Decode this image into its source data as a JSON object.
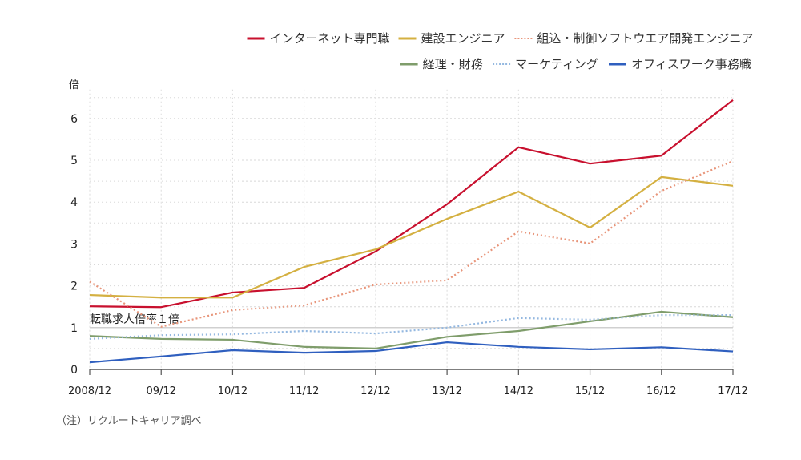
{
  "chart_data": {
    "type": "line",
    "title": "",
    "xlabel": "",
    "ylabel": "倍",
    "ylim": [
      0,
      6.5
    ],
    "yticks": [
      0,
      1,
      2,
      3,
      4,
      5,
      6
    ],
    "grid": true,
    "legend_position": "top-right",
    "categories": [
      "2008/12",
      "09/12",
      "10/12",
      "11/12",
      "12/12",
      "13/12",
      "14/12",
      "15/12",
      "16/12",
      "17/12"
    ],
    "series": [
      {
        "name": "インターネット専門職",
        "color": "#c8102e",
        "style": "solid",
        "values": [
          1.51,
          1.49,
          1.84,
          1.95,
          2.82,
          3.95,
          5.31,
          4.92,
          5.11,
          6.44
        ]
      },
      {
        "name": "建設エンジニア",
        "color": "#d4b041",
        "style": "solid",
        "values": [
          1.78,
          1.72,
          1.72,
          2.45,
          2.87,
          3.6,
          4.25,
          3.39,
          4.6,
          4.39
        ]
      },
      {
        "name": "組込・制御ソフトウエア開発エンジニア",
        "color": "#e8957a",
        "style": "dotted",
        "values": [
          2.1,
          1.02,
          1.42,
          1.53,
          2.03,
          2.13,
          3.3,
          3.01,
          4.27,
          4.98
        ]
      },
      {
        "name": "経理・財務",
        "color": "#7f9d6b",
        "style": "solid",
        "values": [
          0.8,
          0.73,
          0.71,
          0.54,
          0.5,
          0.78,
          0.92,
          1.15,
          1.38,
          1.25
        ]
      },
      {
        "name": "マーケティング",
        "color": "#94b8e0",
        "style": "dotted",
        "values": [
          0.73,
          0.82,
          0.84,
          0.92,
          0.86,
          1.0,
          1.23,
          1.19,
          1.3,
          1.3
        ]
      },
      {
        "name": "オフィスワーク事務職",
        "color": "#2f5fbf",
        "style": "solid",
        "values": [
          0.17,
          0.31,
          0.46,
          0.4,
          0.44,
          0.65,
          0.54,
          0.48,
          0.53,
          0.43
        ]
      }
    ],
    "reference_line": {
      "value": 1,
      "label": "転職求人倍率１倍"
    },
    "annotation": "（注）リクルートキャリア調べ"
  }
}
